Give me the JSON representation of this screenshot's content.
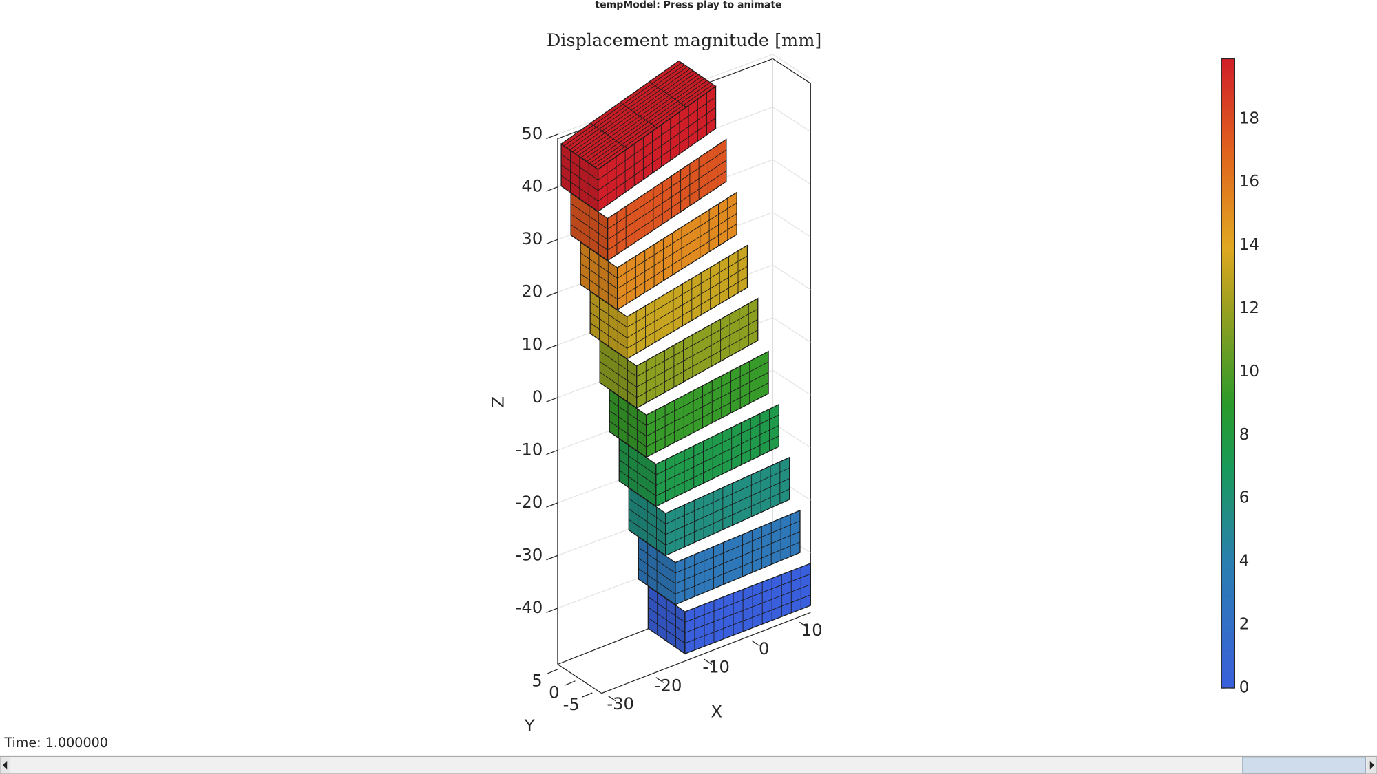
{
  "window_title": "tempModel: Press play to animate",
  "axes": {
    "title": "Displacement magnitude [mm]",
    "x_label": "X",
    "y_label": "Y",
    "z_label": "Z",
    "x_ticks": [
      -30,
      -20,
      -10,
      0,
      10
    ],
    "y_ticks": [
      5,
      0,
      -5
    ],
    "z_ticks": [
      50,
      40,
      30,
      20,
      10,
      0,
      -10,
      -20,
      -30,
      -40
    ]
  },
  "colorbar": {
    "limits": [
      0,
      19.9
    ],
    "ticks": [
      0,
      2,
      4,
      6,
      8,
      10,
      12,
      14,
      16,
      18
    ]
  },
  "status": {
    "time": "Time: 1.000000"
  }
}
